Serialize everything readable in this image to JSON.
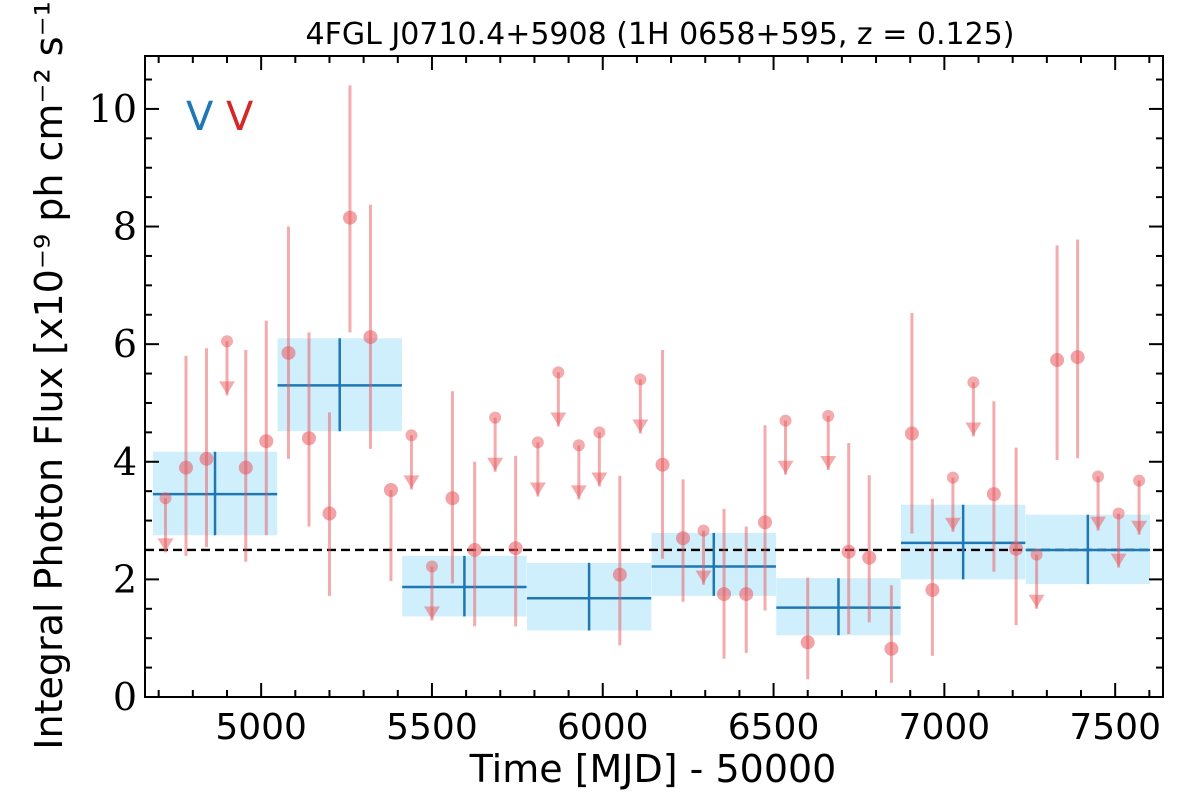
{
  "chart_data": {
    "type": "scatter",
    "title": "4FGL J0710.4+5908 (1H 0658+595, z = 0.125)",
    "xlabel": "Time [MJD] - 50000",
    "ylabel": "Integral Photon Flux [x10⁻⁹ ph cm⁻² s⁻¹]",
    "xlim": [
      4660,
      7640
    ],
    "ylim": [
      0,
      10.9
    ],
    "xticks": [
      5000,
      5500,
      6000,
      6500,
      7000,
      7500
    ],
    "yticks": [
      0,
      2,
      4,
      6,
      8,
      10
    ],
    "variability_flags": [
      {
        "text": "V",
        "color": "#1f77b4"
      },
      {
        "text": "V",
        "color": "#d62728"
      }
    ],
    "baseline": 2.5,
    "colors": {
      "points": "#e8585c",
      "bins": "#1f77b4",
      "bin_band": "#cdeefc"
    },
    "binned_series": [
      {
        "x": 4865,
        "xerr": 182,
        "y": 3.45,
        "yerr": [
          0.7,
          0.72
        ]
      },
      {
        "x": 5230,
        "xerr": 182,
        "y": 5.3,
        "yerr": [
          0.78,
          0.8
        ]
      },
      {
        "x": 5595,
        "xerr": 182,
        "y": 1.87,
        "yerr": [
          0.5,
          0.53
        ]
      },
      {
        "x": 5960,
        "xerr": 182,
        "y": 1.68,
        "yerr": [
          0.55,
          0.6
        ]
      },
      {
        "x": 6325,
        "xerr": 182,
        "y": 2.22,
        "yerr": [
          0.5,
          0.57
        ]
      },
      {
        "x": 6690,
        "xerr": 182,
        "y": 1.52,
        "yerr": [
          0.47,
          0.5
        ]
      },
      {
        "x": 7055,
        "xerr": 182,
        "y": 2.62,
        "yerr": [
          0.62,
          0.65
        ]
      },
      {
        "x": 7420,
        "xerr": 182,
        "y": 2.5,
        "yerr": [
          0.58,
          0.6
        ]
      }
    ],
    "fine_series": [
      {
        "x": 4720,
        "y": 3.38,
        "upper_limit": true
      },
      {
        "x": 4780,
        "y": 3.9,
        "yerr": [
          1.5,
          1.9
        ]
      },
      {
        "x": 4840,
        "y": 4.05,
        "yerr": [
          1.5,
          1.88
        ]
      },
      {
        "x": 4900,
        "y": 6.05,
        "upper_limit": true
      },
      {
        "x": 4955,
        "y": 3.9,
        "yerr": [
          1.6,
          2.0
        ]
      },
      {
        "x": 5015,
        "y": 4.35,
        "yerr": [
          1.6,
          2.05
        ]
      },
      {
        "x": 5080,
        "y": 5.85,
        "yerr": [
          1.8,
          2.15
        ]
      },
      {
        "x": 5140,
        "y": 4.4,
        "yerr": [
          1.5,
          1.8
        ]
      },
      {
        "x": 5200,
        "y": 3.12,
        "yerr": [
          1.4,
          1.72
        ]
      },
      {
        "x": 5260,
        "y": 8.15,
        "yerr": [
          1.95,
          2.25
        ]
      },
      {
        "x": 5320,
        "y": 6.12,
        "yerr": [
          1.9,
          2.25
        ]
      },
      {
        "x": 5380,
        "y": 3.52,
        "yerr": [
          1.55,
          0.0
        ]
      },
      {
        "x": 5440,
        "y": 4.45,
        "upper_limit": true
      },
      {
        "x": 5500,
        "y": 2.22,
        "upper_limit": true
      },
      {
        "x": 5560,
        "y": 3.38,
        "yerr": [
          1.45,
          1.82
        ]
      },
      {
        "x": 5625,
        "y": 2.5,
        "yerr": [
          1.3,
          1.5
        ]
      },
      {
        "x": 5685,
        "y": 4.75,
        "upper_limit": true
      },
      {
        "x": 5745,
        "y": 2.53,
        "yerr": [
          1.33,
          1.57
        ]
      },
      {
        "x": 5810,
        "y": 4.33,
        "upper_limit": true
      },
      {
        "x": 5870,
        "y": 5.52,
        "upper_limit": true
      },
      {
        "x": 5930,
        "y": 4.28,
        "upper_limit": true
      },
      {
        "x": 5990,
        "y": 4.5,
        "upper_limit": true
      },
      {
        "x": 6050,
        "y": 2.08,
        "yerr": [
          1.2,
          1.68
        ]
      },
      {
        "x": 6110,
        "y": 5.4,
        "upper_limit": true
      },
      {
        "x": 6175,
        "y": 3.95,
        "yerr": [
          1.6,
          1.95
        ]
      },
      {
        "x": 6235,
        "y": 2.7,
        "yerr": [
          1.08,
          1.0
        ]
      },
      {
        "x": 6295,
        "y": 2.83,
        "upper_limit": true
      },
      {
        "x": 6355,
        "y": 1.75,
        "yerr": [
          1.1,
          1.45
        ]
      },
      {
        "x": 6420,
        "y": 1.75,
        "yerr": [
          1.0,
          1.15
        ]
      },
      {
        "x": 6475,
        "y": 2.97,
        "yerr": [
          1.5,
          1.65
        ]
      },
      {
        "x": 6535,
        "y": 4.7,
        "upper_limit": true
      },
      {
        "x": 6600,
        "y": 0.93,
        "yerr": [
          0.63,
          1.1
        ]
      },
      {
        "x": 6660,
        "y": 4.78,
        "upper_limit": true
      },
      {
        "x": 6720,
        "y": 2.47,
        "yerr": [
          1.4,
          1.85
        ]
      },
      {
        "x": 6780,
        "y": 2.37,
        "yerr": [
          1.1,
          1.4
        ]
      },
      {
        "x": 6845,
        "y": 0.82,
        "yerr": [
          0.58,
          1.08
        ]
      },
      {
        "x": 6905,
        "y": 4.48,
        "yerr": [
          1.7,
          2.05
        ]
      },
      {
        "x": 6965,
        "y": 1.82,
        "yerr": [
          1.12,
          1.55
        ]
      },
      {
        "x": 7025,
        "y": 3.73,
        "upper_limit": true
      },
      {
        "x": 7085,
        "y": 5.35,
        "upper_limit": true
      },
      {
        "x": 7145,
        "y": 3.45,
        "yerr": [
          1.32,
          1.58
        ]
      },
      {
        "x": 7210,
        "y": 2.52,
        "yerr": [
          1.3,
          1.72
        ]
      },
      {
        "x": 7270,
        "y": 2.42,
        "upper_limit": true
      },
      {
        "x": 7330,
        "y": 5.73,
        "yerr": [
          1.7,
          1.95
        ]
      },
      {
        "x": 7390,
        "y": 5.78,
        "yerr": [
          1.72,
          2.0
        ]
      },
      {
        "x": 7450,
        "y": 3.75,
        "upper_limit": true
      },
      {
        "x": 7510,
        "y": 3.12,
        "upper_limit": true
      },
      {
        "x": 7570,
        "y": 3.68,
        "upper_limit": true
      }
    ]
  }
}
